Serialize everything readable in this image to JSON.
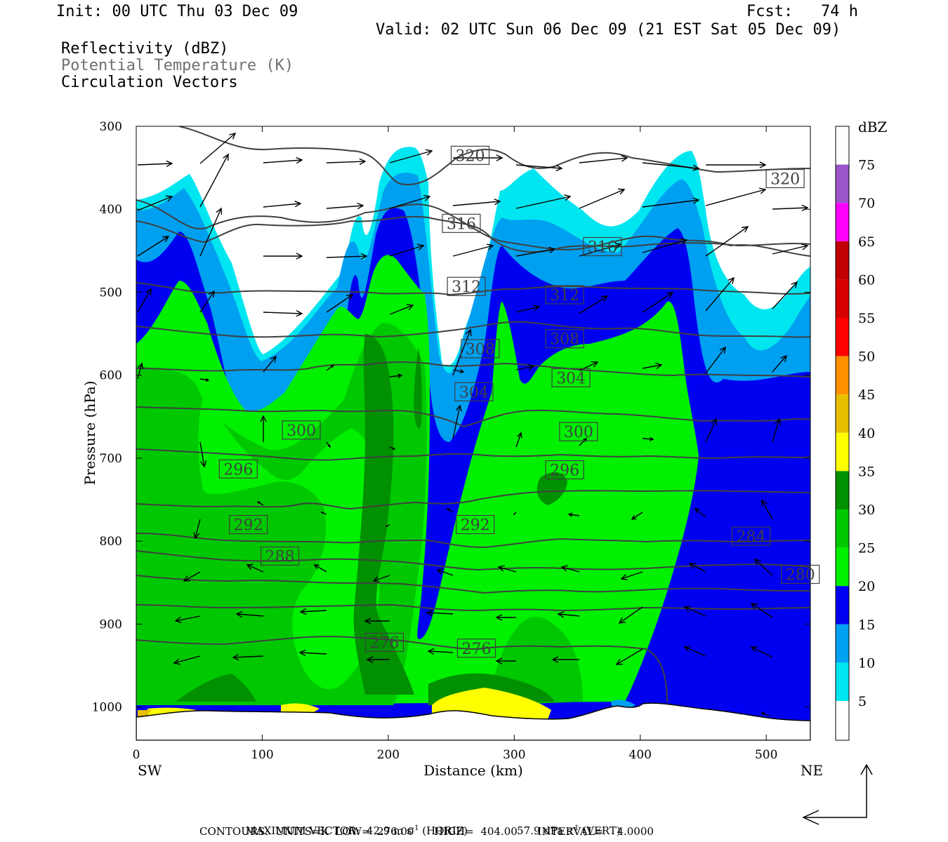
{
  "header": {
    "init": "Init: 00 UTC Thu 03 Dec 09",
    "fcst": "Fcst:   74 h",
    "valid": "Valid: 02 UTC Sun 06 Dec 09 (21 EST Sat 05 Dec 09)",
    "field1": "Reflectivity (dBZ)",
    "field2": "Potential Temperature (K)",
    "field3": "Circulation Vectors"
  },
  "footer": {
    "line1a": "MAXIMUM VECTOR:  42.9 m s",
    "line1b": " (HORIZ)",
    "line1c": "57.9 dPa s",
    "line1d": " (VERT)",
    "sup": "-1",
    "line2": "CONTOURS:  UNITS=K  LOW=  276.00      HIGH=  404.00      INTERVAL=    4.0000"
  },
  "colors": {
    "c5": "#00e6f0",
    "c10": "#00a0f0",
    "c15": "#0000f0",
    "c20": "#00f000",
    "c25": "#00c800",
    "c30": "#009000",
    "c35": "#ffff00",
    "c40": "#e6bf00",
    "c45": "#ff9000",
    "c50": "#ff0000",
    "c55": "#d60000",
    "c60": "#c00000",
    "c65": "#ff00ff",
    "c70": "#9955c9",
    "c75": "#fefefe",
    "contour": "#404040",
    "vector": "#000000"
  },
  "chart_data": {
    "type": "cross-section",
    "xlabel": "Distance (km)",
    "ylabel": "Pressure (hPa)",
    "xlim": [
      0,
      535
    ],
    "ylim": [
      1040,
      300
    ],
    "x_ticks": [
      0,
      100,
      200,
      300,
      400,
      500
    ],
    "y_ticks": [
      300,
      400,
      500,
      600,
      700,
      800,
      900,
      1000
    ],
    "left_end": "SW",
    "right_end": "NE",
    "colorbar": {
      "title": "dBZ",
      "levels": [
        5,
        10,
        15,
        20,
        25,
        30,
        35,
        40,
        45,
        50,
        55,
        60,
        65,
        70,
        75
      ]
    },
    "theta_contour_labels": [
      {
        "value": "320",
        "x": 265,
        "p": 335
      },
      {
        "value": "320",
        "x": 515,
        "p": 363
      },
      {
        "value": "316",
        "x": 258,
        "p": 417
      },
      {
        "value": "316",
        "x": 370,
        "p": 445
      },
      {
        "value": "312",
        "x": 262,
        "p": 493
      },
      {
        "value": "312",
        "x": 340,
        "p": 503
      },
      {
        "value": "308",
        "x": 273,
        "p": 568
      },
      {
        "value": "308",
        "x": 340,
        "p": 556
      },
      {
        "value": "304",
        "x": 268,
        "p": 620
      },
      {
        "value": "304",
        "x": 345,
        "p": 603
      },
      {
        "value": "300",
        "x": 131,
        "p": 666
      },
      {
        "value": "300",
        "x": 351,
        "p": 668
      },
      {
        "value": "296",
        "x": 81,
        "p": 713
      },
      {
        "value": "296",
        "x": 340,
        "p": 714
      },
      {
        "value": "292",
        "x": 89,
        "p": 780
      },
      {
        "value": "292",
        "x": 269,
        "p": 780
      },
      {
        "value": "288",
        "x": 114,
        "p": 818
      },
      {
        "value": "284",
        "x": 488,
        "p": 794
      },
      {
        "value": "280",
        "x": 527,
        "p": 840
      },
      {
        "value": "276",
        "x": 197,
        "p": 922
      },
      {
        "value": "276",
        "x": 270,
        "p": 929
      }
    ],
    "max_vector_horiz": "42.9 m s-1",
    "max_vector_vert": "57.9 dPa s-1",
    "contour_low": "276.00",
    "contour_high": "404.00",
    "contour_interval": "4.0000",
    "contour_units": "K"
  }
}
